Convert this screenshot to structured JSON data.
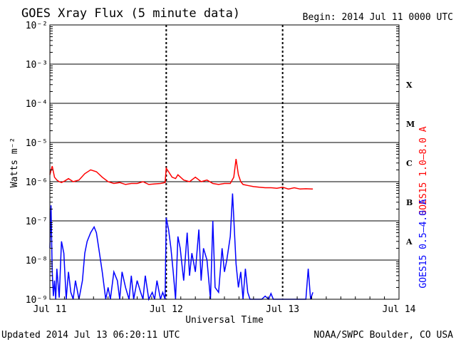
{
  "title": "GOES Xray Flux (5 minute data)",
  "begin": "Begin:  2014 Jul 11 0000 UTC",
  "updated": "Updated 2014 Jul 13 06:20:11 UTC",
  "credit": "NOAA/SWPC Boulder, CO USA",
  "chart_data": {
    "type": "line",
    "title": "GOES Xray Flux (5 minute data)",
    "xlabel": "Universal Time",
    "ylabel": "Watts m⁻²",
    "y_scale": "log",
    "ylim": [
      1e-09,
      0.01
    ],
    "y_ticks": [
      {
        "value": 1e-09,
        "label": "10⁻⁹"
      },
      {
        "value": 1e-08,
        "label": "10⁻⁸"
      },
      {
        "value": 1e-07,
        "label": "10⁻⁷"
      },
      {
        "value": 1e-06,
        "label": "10⁻⁶"
      },
      {
        "value": 1e-05,
        "label": "10⁻⁵"
      },
      {
        "value": 0.0001,
        "label": "10⁻⁴"
      },
      {
        "value": 0.001,
        "label": "10⁻³"
      },
      {
        "value": 0.01,
        "label": "10⁻²"
      }
    ],
    "x_ticks": [
      "Jul 11",
      "Jul 12",
      "Jul 13",
      "Jul 14"
    ],
    "xlim_days": [
      0,
      3
    ],
    "flare_classes": [
      {
        "label": "X",
        "value": 0.0003
      },
      {
        "label": "M",
        "value": 3e-05
      },
      {
        "label": "C",
        "value": 3e-06
      },
      {
        "label": "B",
        "value": 3e-07
      },
      {
        "label": "A",
        "value": 3e-08
      }
    ],
    "grid": true,
    "series": [
      {
        "name": "GOES15 1.0–8.0 A",
        "color": "#ff0000",
        "x": [
          0.0,
          0.02,
          0.04,
          0.06,
          0.08,
          0.1,
          0.13,
          0.16,
          0.2,
          0.25,
          0.3,
          0.35,
          0.4,
          0.45,
          0.5,
          0.55,
          0.6,
          0.65,
          0.7,
          0.75,
          0.8,
          0.85,
          0.9,
          0.95,
          0.99,
          1.0,
          1.02,
          1.05,
          1.08,
          1.1,
          1.15,
          1.2,
          1.25,
          1.3,
          1.35,
          1.4,
          1.45,
          1.5,
          1.55,
          1.58,
          1.6,
          1.62,
          1.64,
          1.66,
          1.7,
          1.75,
          1.8,
          1.85,
          1.9,
          1.95,
          2.0,
          2.05,
          2.1,
          2.15,
          2.2,
          2.25,
          2.26
        ],
        "values": [
          1.5e-06,
          2.5e-06,
          1.3e-06,
          1.1e-06,
          1e-06,
          9.5e-07,
          1.05e-06,
          1.2e-06,
          1e-06,
          1.1e-06,
          1.6e-06,
          2e-06,
          1.8e-06,
          1.3e-06,
          1e-06,
          9e-07,
          9.5e-07,
          8.5e-07,
          9e-07,
          9e-07,
          1e-06,
          8.5e-07,
          8.8e-07,
          9e-07,
          9.5e-07,
          2.2e-06,
          1.8e-06,
          1.3e-06,
          1.2e-06,
          1.5e-06,
          1.1e-06,
          1e-06,
          1.3e-06,
          1e-06,
          1.1e-06,
          9e-07,
          8.5e-07,
          9e-07,
          9e-07,
          1.3e-06,
          3.8e-06,
          1.5e-06,
          1e-06,
          8.5e-07,
          8e-07,
          7.5e-07,
          7.2e-07,
          7e-07,
          7e-07,
          6.8e-07,
          7.2e-07,
          6.5e-07,
          7e-07,
          6.5e-07,
          6.6e-07,
          6.5e-07,
          6.5e-07
        ]
      },
      {
        "name": "GOES15 0.5–4.0 A",
        "color": "#0000ff",
        "x": [
          0.0,
          0.01,
          0.02,
          0.03,
          0.04,
          0.05,
          0.06,
          0.08,
          0.1,
          0.12,
          0.14,
          0.16,
          0.18,
          0.2,
          0.22,
          0.25,
          0.28,
          0.3,
          0.32,
          0.35,
          0.38,
          0.4,
          0.42,
          0.45,
          0.48,
          0.5,
          0.52,
          0.55,
          0.58,
          0.6,
          0.62,
          0.65,
          0.68,
          0.7,
          0.72,
          0.75,
          0.78,
          0.8,
          0.82,
          0.85,
          0.88,
          0.9,
          0.92,
          0.95,
          0.97,
          0.99,
          1.0,
          1.02,
          1.04,
          1.06,
          1.08,
          1.1,
          1.12,
          1.15,
          1.18,
          1.2,
          1.22,
          1.25,
          1.28,
          1.3,
          1.32,
          1.35,
          1.38,
          1.4,
          1.42,
          1.45,
          1.48,
          1.5,
          1.52,
          1.55,
          1.57,
          1.6,
          1.62,
          1.64,
          1.66,
          1.68,
          1.7,
          1.72,
          1.75,
          1.78,
          1.8,
          1.82,
          1.85,
          1.88,
          1.9,
          1.92,
          1.95,
          1.98,
          2.0,
          2.05,
          2.1,
          2.15,
          2.2,
          2.22,
          2.24,
          2.26
        ],
        "values": [
          2e-08,
          2.5e-07,
          5e-09,
          1.2e-09,
          3e-09,
          1e-09,
          6e-09,
          1.1e-09,
          3e-08,
          1.5e-08,
          1e-09,
          5e-09,
          1.5e-09,
          1e-09,
          3e-09,
          1e-09,
          3e-09,
          1.5e-08,
          3e-08,
          5e-08,
          7e-08,
          5e-08,
          2e-08,
          5e-09,
          1e-09,
          2e-09,
          1e-09,
          5e-09,
          3e-09,
          1e-09,
          5e-09,
          2e-09,
          1e-09,
          4e-09,
          1e-09,
          3e-09,
          1.5e-09,
          1e-09,
          4e-09,
          1e-09,
          1.5e-09,
          1e-09,
          3e-09,
          1e-09,
          1.5e-09,
          1e-09,
          1.2e-07,
          6e-08,
          2e-08,
          5e-09,
          1e-09,
          4e-08,
          2e-08,
          3e-09,
          5e-08,
          4e-09,
          1.5e-08,
          5e-09,
          6e-08,
          3e-09,
          2e-08,
          1e-08,
          1e-09,
          1e-07,
          2e-09,
          1.5e-09,
          2e-08,
          5e-09,
          1e-08,
          4e-08,
          5e-07,
          8e-09,
          2e-09,
          5e-09,
          1e-09,
          6e-09,
          1.5e-09,
          1e-09,
          1e-09,
          1e-09,
          1e-09,
          1e-09,
          1.2e-09,
          1e-09,
          1.4e-09,
          1e-09,
          1e-09,
          1e-09,
          1e-09,
          1e-09,
          1e-09,
          1e-09,
          1e-09,
          6e-09,
          1e-09,
          1.5e-09
        ]
      }
    ]
  }
}
